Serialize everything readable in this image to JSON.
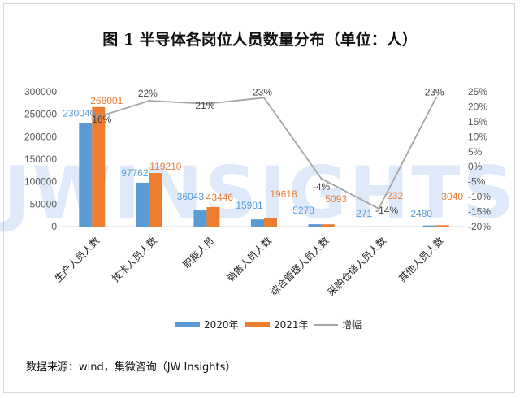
{
  "chart_data": {
    "type": "bar",
    "title": "图 1  半导体各岗位人员数量分布（单位：人）",
    "categories": [
      "生产人员人数",
      "技术人员人数",
      "职能人员",
      "销售人员人数",
      "综合管理人员人数",
      "采购仓储人员人数",
      "其他人员人数"
    ],
    "series": [
      {
        "name": "2020年",
        "type": "bar",
        "axis": "left",
        "color": "#5b9bd5",
        "values": [
          230040,
          97762,
          36043,
          15981,
          5278,
          271,
          2480
        ]
      },
      {
        "name": "2021年",
        "type": "bar",
        "axis": "left",
        "color": "#ed7d31",
        "values": [
          266001,
          119210,
          43446,
          19618,
          5093,
          232,
          3040
        ]
      },
      {
        "name": "增幅",
        "type": "line",
        "axis": "right",
        "color": "#a5a5a5",
        "values": [
          16,
          22,
          21,
          23,
          -4,
          -14,
          23
        ]
      }
    ],
    "data_labels": {
      "2020年": [
        "230040",
        "97762",
        "36043",
        "15981",
        "5278",
        "271",
        "2480"
      ],
      "2021年": [
        "266001",
        "119210",
        "43446",
        "19618",
        "5093",
        "232",
        "3040"
      ],
      "增幅": [
        "16%",
        "22%",
        "21%",
        "23%",
        "-4%",
        "-14%",
        "23%"
      ]
    },
    "y_left": {
      "min": 0,
      "max": 300000,
      "ticks": [
        "0",
        "50000",
        "100000",
        "150000",
        "200000",
        "250000",
        "300000"
      ]
    },
    "y_right": {
      "min": -20,
      "max": 25,
      "ticks": [
        "-20%",
        "-15%",
        "-10%",
        "-5%",
        "0%",
        "5%",
        "10%",
        "15%",
        "20%",
        "25%"
      ]
    },
    "grid": false,
    "legend": "bottom"
  },
  "watermark": "JWINSIGHTS",
  "source_note": "数据来源：wind，集微咨询（JW Insights）"
}
